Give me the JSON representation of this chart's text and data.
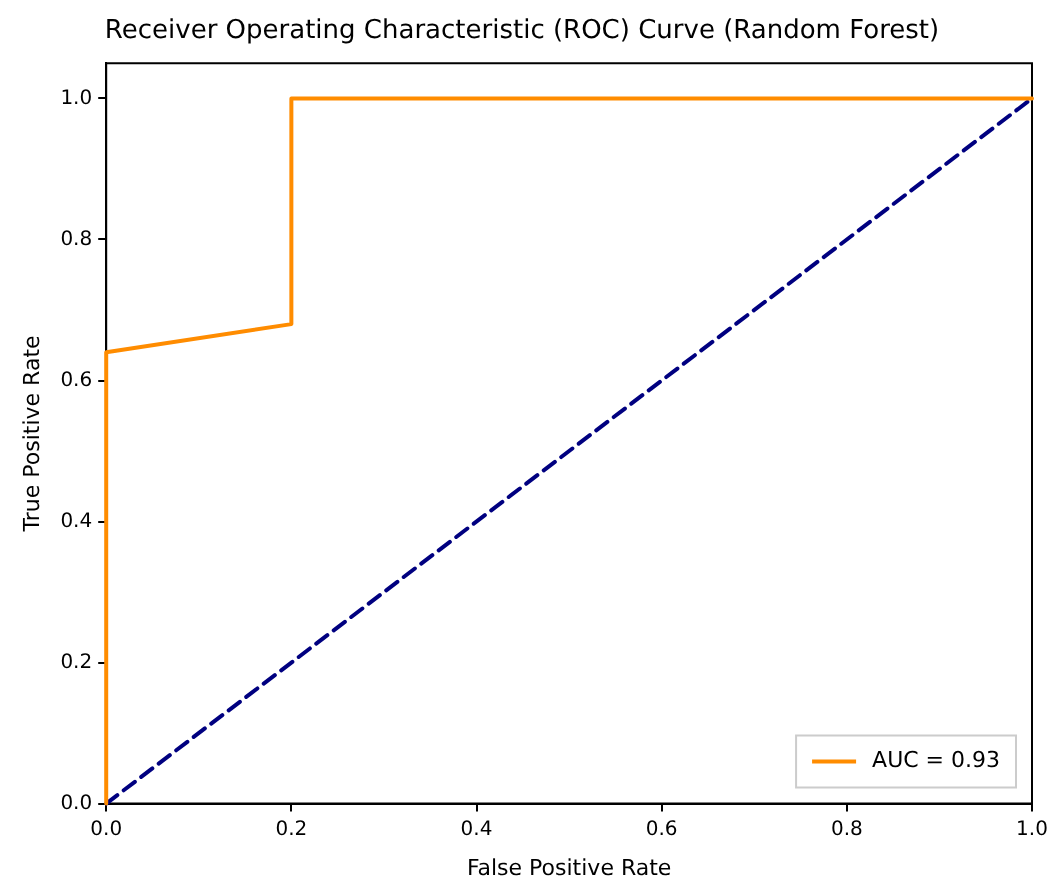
{
  "chart_data": {
    "type": "line",
    "title": "Receiver Operating Characteristic (ROC) Curve (Random Forest)",
    "xlabel": "False Positive Rate",
    "ylabel": "True Positive Rate",
    "xlim": [
      0,
      1
    ],
    "ylim": [
      0,
      1.05
    ],
    "xticks": [
      {
        "value": 0,
        "label": "0.0"
      },
      {
        "value": 0.2,
        "label": "0.2"
      },
      {
        "value": 0.4,
        "label": "0.4"
      },
      {
        "value": 0.6,
        "label": "0.6"
      },
      {
        "value": 0.8,
        "label": "0.8"
      },
      {
        "value": 1,
        "label": "1.0"
      }
    ],
    "yticks": [
      {
        "value": 0,
        "label": "0.0"
      },
      {
        "value": 0.2,
        "label": "0.2"
      },
      {
        "value": 0.4,
        "label": "0.4"
      },
      {
        "value": 0.6,
        "label": "0.6"
      },
      {
        "value": 0.8,
        "label": "0.8"
      },
      {
        "value": 1,
        "label": "1.0"
      }
    ],
    "series": [
      {
        "name": "AUC = 0.93",
        "color": "#ff8c00",
        "x": [
          0,
          0,
          0.2,
          0.2,
          1
        ],
        "values": [
          0,
          0.64,
          0.68,
          1,
          1
        ],
        "line_style": "solid"
      },
      {
        "color": "#000080",
        "x": [
          0,
          1
        ],
        "values": [
          0,
          1
        ],
        "line_style": "dashed"
      }
    ],
    "legend": "bottom right",
    "grid": false,
    "marker": "none"
  }
}
